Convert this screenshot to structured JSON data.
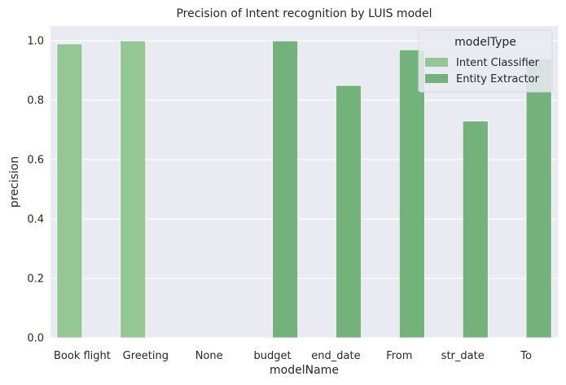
{
  "chart_data": {
    "type": "bar",
    "title": "Precision of Intent recognition by LUIS model",
    "xlabel": "modelName",
    "ylabel": "precision",
    "ylim": [
      0,
      1.05
    ],
    "yticks": [
      0.0,
      0.2,
      0.4,
      0.6,
      0.8,
      1.0
    ],
    "ytick_labels": [
      "0.0",
      "0.2",
      "0.4",
      "0.6",
      "0.8",
      "1.0"
    ],
    "grid": true,
    "legend": {
      "title": "modelType",
      "position": "top-right"
    },
    "categories": [
      "Book flight",
      "Greeting",
      "None",
      "budget",
      "end_date",
      "From",
      "str_date",
      "To"
    ],
    "series": [
      {
        "name": "Intent Classifier",
        "color": "#95c795",
        "values": [
          0.99,
          1.0,
          0.0,
          null,
          null,
          null,
          null,
          null
        ]
      },
      {
        "name": "Entity Extractor",
        "color": "#73b27a",
        "values": [
          null,
          null,
          null,
          1.0,
          0.85,
          0.97,
          0.73,
          0.94
        ]
      }
    ],
    "background_color": "#eaeaf2",
    "grid_color": "#ffffff"
  }
}
